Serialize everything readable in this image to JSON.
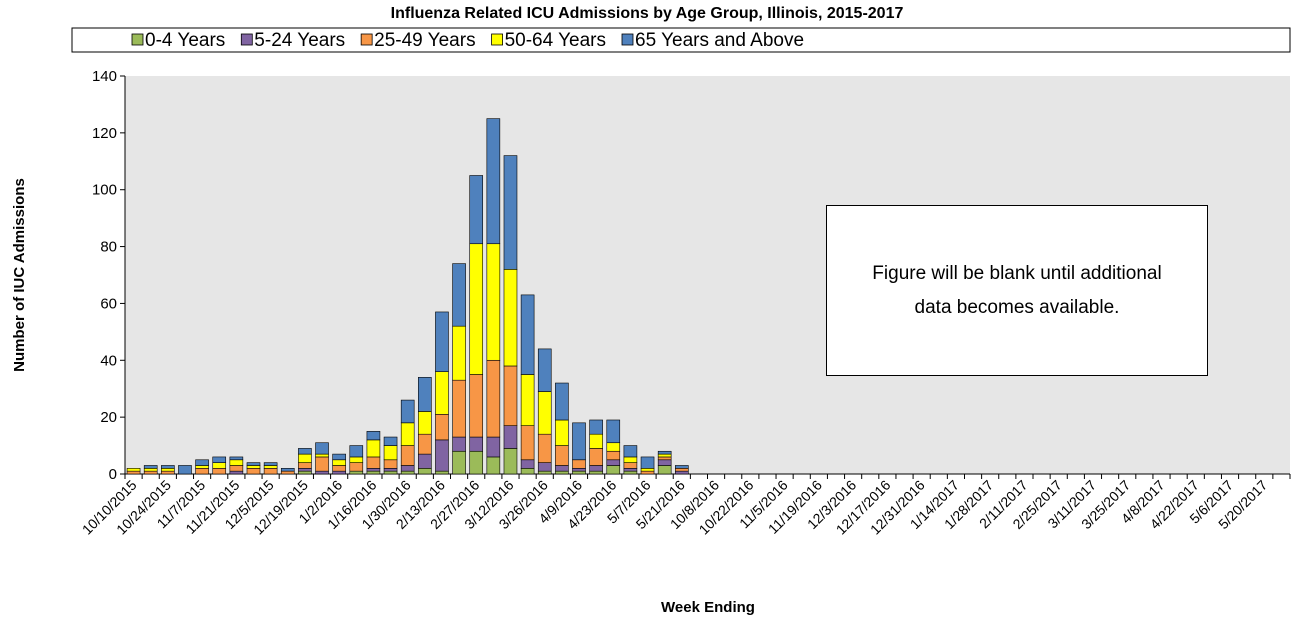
{
  "chart_data": {
    "type": "stacked_bar",
    "title": "Influenza Related ICU Admissions by Age Group, Illinois, 2015-2017",
    "y_label": "Number of IUC Admissions",
    "x_label": "Week Ending",
    "annotation": "Figure will be blank until additional data becomes available.",
    "categories": [
      "10/10/2015",
      null,
      "10/24/2015",
      null,
      "11/7/2015",
      null,
      "11/21/2015",
      null,
      "12/5/2015",
      null,
      "12/19/2015",
      null,
      "1/2/2016",
      null,
      "1/16/2016",
      null,
      "1/30/2016",
      null,
      "2/13/2016",
      null,
      "2/27/2016",
      null,
      "3/12/2016",
      null,
      "3/26/2016",
      null,
      "4/9/2016",
      null,
      "4/23/2016",
      null,
      "5/7/2016",
      null,
      "5/21/2016",
      null,
      "10/8/2016",
      null,
      "10/22/2016",
      null,
      "11/5/2016",
      null,
      "11/19/2016",
      null,
      "12/3/2016",
      null,
      "12/17/2016",
      null,
      "12/31/2016",
      null,
      "1/14/2017",
      null,
      "1/28/2017",
      null,
      "2/11/2017",
      null,
      "2/25/2017",
      null,
      "3/11/2017",
      null,
      "3/25/2017",
      null,
      "4/8/2017",
      null,
      "4/22/2017",
      null,
      "5/6/2017",
      null,
      "5/20/2017",
      null
    ],
    "series": [
      {
        "name": "0-4 Years",
        "color": "#9bbb59",
        "values": [
          0,
          0,
          0,
          0,
          0,
          0,
          0,
          0,
          0,
          0,
          1,
          0,
          0,
          1,
          1,
          1,
          1,
          2,
          1,
          8,
          8,
          6,
          9,
          2,
          1,
          1,
          1,
          1,
          3,
          1,
          0,
          3,
          0,
          null,
          null,
          null,
          null,
          null,
          null,
          null,
          null,
          null,
          null,
          null,
          null,
          null,
          null,
          null,
          null,
          null,
          null,
          null,
          null,
          null,
          null,
          null,
          null,
          null,
          null,
          null,
          null,
          null,
          null,
          null,
          null,
          null,
          null,
          null
        ]
      },
      {
        "name": "5-24 Years",
        "color": "#8064a2",
        "values": [
          0,
          0,
          0,
          0,
          0,
          0,
          1,
          0,
          0,
          0,
          1,
          1,
          1,
          0,
          1,
          1,
          2,
          5,
          11,
          5,
          5,
          7,
          8,
          3,
          3,
          2,
          1,
          2,
          2,
          1,
          0,
          2,
          1,
          null,
          null,
          null,
          null,
          null,
          null,
          null,
          null,
          null,
          null,
          null,
          null,
          null,
          null,
          null,
          null,
          null,
          null,
          null,
          null,
          null,
          null,
          null,
          null,
          null,
          null,
          null,
          null,
          null,
          null,
          null,
          null,
          null,
          null,
          null
        ]
      },
      {
        "name": "25-49 Years",
        "color": "#f79646",
        "values": [
          1,
          1,
          1,
          0,
          2,
          2,
          2,
          2,
          2,
          1,
          2,
          5,
          2,
          3,
          4,
          3,
          7,
          7,
          9,
          20,
          22,
          27,
          21,
          12,
          10,
          7,
          3,
          6,
          3,
          2,
          1,
          1,
          1,
          null,
          null,
          null,
          null,
          null,
          null,
          null,
          null,
          null,
          null,
          null,
          null,
          null,
          null,
          null,
          null,
          null,
          null,
          null,
          null,
          null,
          null,
          null,
          null,
          null,
          null,
          null,
          null,
          null,
          null,
          null,
          null,
          null,
          null,
          null
        ]
      },
      {
        "name": "50-64 Years",
        "color": "#ffff00",
        "values": [
          1,
          1,
          1,
          0,
          1,
          2,
          2,
          1,
          1,
          0,
          3,
          1,
          2,
          2,
          6,
          5,
          8,
          8,
          15,
          19,
          46,
          41,
          34,
          18,
          15,
          9,
          0,
          5,
          3,
          2,
          1,
          1,
          0,
          null,
          null,
          null,
          null,
          null,
          null,
          null,
          null,
          null,
          null,
          null,
          null,
          null,
          null,
          null,
          null,
          null,
          null,
          null,
          null,
          null,
          null,
          null,
          null,
          null,
          null,
          null,
          null,
          null,
          null,
          null,
          null,
          null,
          null,
          null
        ]
      },
      {
        "name": "65 Years and Above",
        "color": "#4f81bd",
        "values": [
          0,
          1,
          1,
          3,
          2,
          2,
          1,
          1,
          1,
          1,
          2,
          4,
          2,
          4,
          3,
          3,
          8,
          12,
          21,
          22,
          24,
          44,
          40,
          28,
          15,
          13,
          13,
          5,
          8,
          4,
          4,
          1,
          1,
          null,
          null,
          null,
          null,
          null,
          null,
          null,
          null,
          null,
          null,
          null,
          null,
          null,
          null,
          null,
          null,
          null,
          null,
          null,
          null,
          null,
          null,
          null,
          null,
          null,
          null,
          null,
          null,
          null,
          null,
          null,
          null,
          null,
          null,
          null
        ]
      }
    ],
    "ylim": [
      0,
      140
    ],
    "yticks": [
      0,
      20,
      40,
      60,
      80,
      100,
      120,
      140
    ],
    "background": "#e6e6e6",
    "legend": "top"
  }
}
